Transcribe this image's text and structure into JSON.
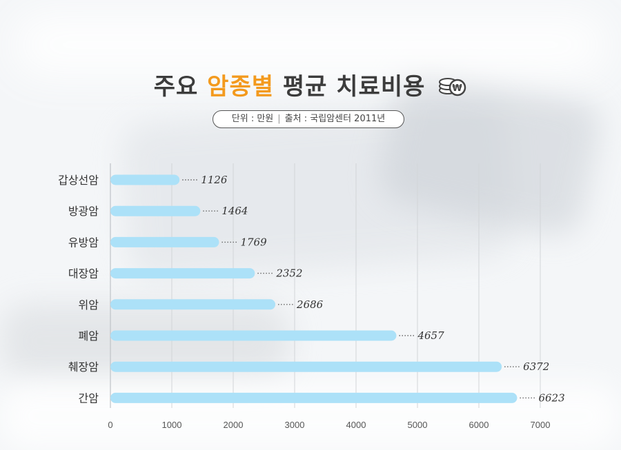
{
  "title": {
    "part1": "주요",
    "accent": "암종별",
    "part2": "평균 치료비용"
  },
  "subtitle": {
    "unit": "단위 : 만원",
    "divider": "|",
    "source": "출처 : 국립암센터 2011년"
  },
  "colors": {
    "bar": "#ace1f8",
    "accent": "#f39a1e",
    "text": "#3c3c3c",
    "grid": "#d2d5d8"
  },
  "icons": {
    "title_icon": "coin-stack-won-icon"
  },
  "chart_data": {
    "type": "bar",
    "orientation": "horizontal",
    "categories": [
      "갑상선암",
      "방광암",
      "유방암",
      "대장암",
      "위암",
      "폐암",
      "췌장암",
      "간암"
    ],
    "values": [
      1126,
      1464,
      1769,
      2352,
      2686,
      4657,
      6372,
      6623
    ],
    "data_labels": [
      "1126",
      "1464",
      "1769",
      "2352",
      "2686",
      "4657",
      "6372",
      "6623"
    ],
    "xticks": [
      "0",
      "1000",
      "2000",
      "3000",
      "4000",
      "5000",
      "6000",
      "7000"
    ],
    "xlim": [
      0,
      7000
    ],
    "grid": "vertical"
  }
}
